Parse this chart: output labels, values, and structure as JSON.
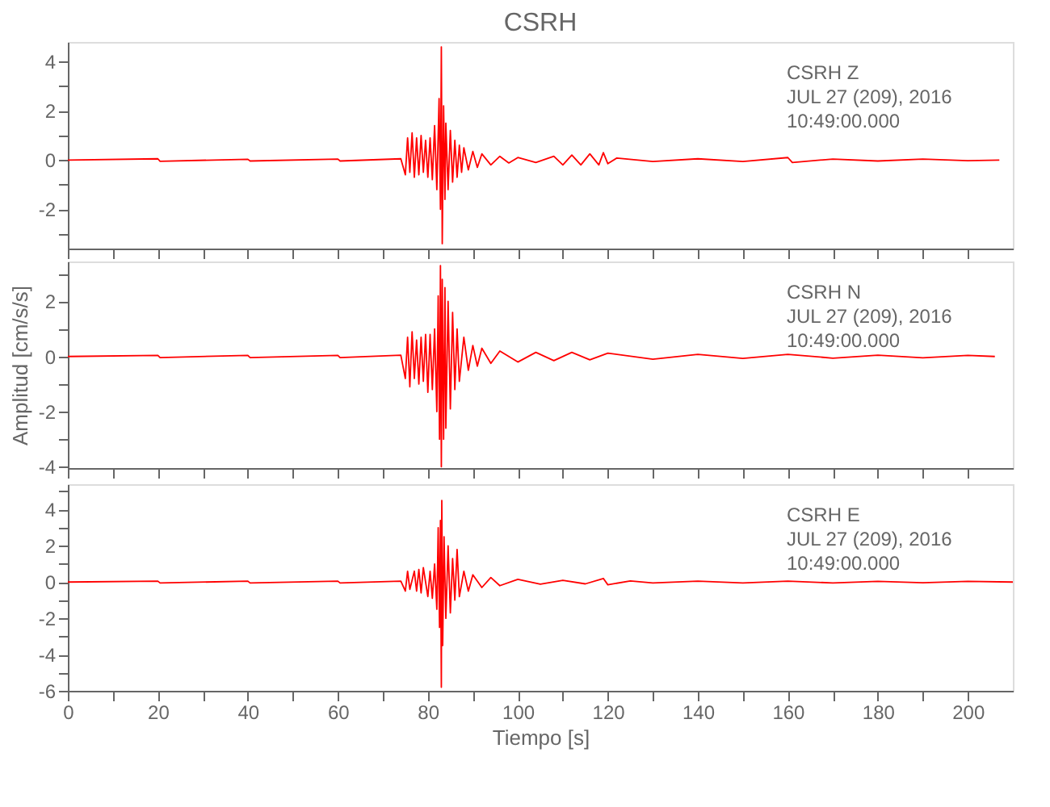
{
  "chart_data": [
    {
      "type": "line",
      "title": "CSRH",
      "annotations": [
        "CSRH   Z",
        "JUL 27 (209), 2016",
        "10:49:00.000"
      ],
      "tick_labels": "y",
      "grid": false,
      "line_style": "solid",
      "marker": "none",
      "xlim": [
        0,
        210
      ],
      "xticks": [
        0,
        {
          "value": 10,
          "label": null
        },
        20,
        {
          "value": 30,
          "label": null
        },
        40,
        {
          "value": 50,
          "label": null
        },
        60,
        {
          "value": 70,
          "label": null
        },
        80,
        {
          "value": 90,
          "label": null
        },
        100,
        {
          "value": 110,
          "label": null
        },
        120,
        {
          "value": 130,
          "label": null
        },
        140,
        {
          "value": 150,
          "label": null
        },
        160,
        {
          "value": 170,
          "label": null
        },
        180,
        {
          "value": 190,
          "label": null
        },
        200
      ],
      "ylim": [
        -3.6,
        4.8
      ],
      "yticks": [
        {
          "value": -3,
          "label": null
        },
        -2,
        {
          "value": -1,
          "label": null
        },
        0,
        {
          "value": 1,
          "label": null
        },
        2,
        {
          "value": 3,
          "label": null
        },
        4
      ],
      "series": [
        {
          "color": "#ff0000",
          "x": [
            0,
            20,
            20.5,
            40,
            40.5,
            60,
            60.5,
            74,
            75,
            75.5,
            76,
            76.5,
            77,
            77.5,
            78,
            78.5,
            79,
            79.5,
            80,
            80.5,
            81,
            81.5,
            82,
            82.5,
            82.8,
            83,
            83.2,
            83.5,
            83.8,
            84,
            84.5,
            85,
            85.5,
            86,
            86.5,
            87,
            87.5,
            88,
            89,
            90,
            91,
            92,
            94,
            96,
            98,
            100,
            104,
            108,
            110,
            112,
            114,
            116,
            118,
            119,
            120,
            122,
            130,
            140,
            150,
            160,
            161,
            170,
            180,
            190,
            200,
            207
          ],
          "values": [
            0,
            0.05,
            -0.05,
            0.03,
            -0.04,
            0.04,
            -0.04,
            0.05,
            -0.6,
            0.9,
            -0.5,
            1.1,
            -0.7,
            0.9,
            -0.6,
            1.0,
            -0.5,
            0.8,
            -0.7,
            0.9,
            -0.8,
            1.4,
            -1.2,
            2.5,
            -2.0,
            4.6,
            -3.4,
            2.2,
            -1.6,
            1.5,
            -1.2,
            1.2,
            -0.9,
            0.8,
            -0.7,
            0.6,
            -0.5,
            0.5,
            -0.4,
            0.35,
            -0.3,
            0.25,
            -0.2,
            0.15,
            -0.12,
            0.1,
            -0.1,
            0.15,
            -0.2,
            0.2,
            -0.2,
            0.25,
            -0.2,
            0.3,
            -0.15,
            0.08,
            -0.06,
            0.05,
            -0.06,
            0.1,
            -0.1,
            0.04,
            -0.04,
            0.04,
            -0.03,
            0
          ]
        }
      ]
    },
    {
      "type": "line",
      "ylabel": "Amplitud [cm/s/s]",
      "annotations": [
        "CSRH   N",
        "JUL 27 (209), 2016",
        "10:49:00.000"
      ],
      "tick_labels": "y",
      "grid": false,
      "line_style": "solid",
      "marker": "none",
      "xlim": [
        0,
        210
      ],
      "xticks": [
        0,
        {
          "value": 10,
          "label": null
        },
        20,
        {
          "value": 30,
          "label": null
        },
        40,
        {
          "value": 50,
          "label": null
        },
        60,
        {
          "value": 70,
          "label": null
        },
        80,
        {
          "value": 90,
          "label": null
        },
        100,
        {
          "value": 110,
          "label": null
        },
        120,
        {
          "value": 130,
          "label": null
        },
        140,
        {
          "value": 150,
          "label": null
        },
        160,
        {
          "value": 170,
          "label": null
        },
        180,
        {
          "value": 190,
          "label": null
        },
        200
      ],
      "ylim": [
        -4.05,
        3.45
      ],
      "yticks": [
        -4,
        {
          "value": -3,
          "label": null
        },
        -2,
        {
          "value": -1,
          "label": null
        },
        0,
        {
          "value": 1,
          "label": null
        },
        2,
        {
          "value": 3,
          "label": null
        }
      ],
      "series": [
        {
          "color": "#ff0000",
          "x": [
            0,
            20,
            20.5,
            40,
            40.5,
            60,
            60.5,
            74,
            75,
            75.5,
            76,
            76.5,
            77,
            77.5,
            78,
            78.5,
            79,
            79.5,
            80,
            80.5,
            81,
            81.5,
            82,
            82.3,
            82.6,
            82.8,
            83,
            83.2,
            83.5,
            83.8,
            84,
            84.5,
            85,
            85.5,
            86,
            86.5,
            87,
            88,
            89,
            90,
            91,
            92,
            94,
            96,
            100,
            104,
            108,
            112,
            116,
            120,
            130,
            140,
            150,
            160,
            170,
            180,
            190,
            200,
            206
          ],
          "values": [
            0,
            0.04,
            -0.04,
            0.04,
            -0.04,
            0.04,
            -0.04,
            0.05,
            -0.8,
            0.7,
            -1.1,
            0.9,
            -0.8,
            0.6,
            -1.0,
            0.7,
            -0.9,
            0.8,
            -1.3,
            0.8,
            -1.2,
            1.0,
            -2.0,
            2.2,
            -3.0,
            3.3,
            -4.0,
            2.8,
            -3.0,
            2.5,
            -2.6,
            2.0,
            -1.9,
            1.6,
            -1.2,
            1.0,
            -0.9,
            0.7,
            -0.5,
            0.4,
            -0.35,
            0.3,
            -0.25,
            0.2,
            -0.2,
            0.15,
            -0.15,
            0.15,
            -0.12,
            0.12,
            -0.1,
            0.08,
            -0.07,
            0.08,
            -0.06,
            0.05,
            -0.05,
            0.04,
            0
          ]
        }
      ]
    },
    {
      "type": "line",
      "xlabel": "Tiempo [s]",
      "annotations": [
        "CSRH   E",
        "JUL 27 (209), 2016",
        "10:49:00.000"
      ],
      "grid": false,
      "line_style": "solid",
      "marker": "none",
      "xlim": [
        0,
        210
      ],
      "xticks": [
        0,
        {
          "value": 10,
          "label": null
        },
        20,
        {
          "value": 30,
          "label": null
        },
        40,
        {
          "value": 50,
          "label": null
        },
        60,
        {
          "value": 70,
          "label": null
        },
        80,
        {
          "value": 90,
          "label": null
        },
        100,
        {
          "value": 110,
          "label": null
        },
        120,
        {
          "value": 130,
          "label": null
        },
        140,
        {
          "value": 150,
          "label": null
        },
        160,
        {
          "value": 170,
          "label": null
        },
        180,
        {
          "value": 190,
          "label": null
        },
        200
      ],
      "ylim": [
        -6,
        5.4
      ],
      "yticks": [
        -6,
        {
          "value": -5,
          "label": null
        },
        -4,
        {
          "value": -3,
          "label": null
        },
        -2,
        {
          "value": -1,
          "label": null
        },
        0,
        {
          "value": 1,
          "label": null
        },
        2,
        {
          "value": 3,
          "label": null
        },
        4,
        {
          "value": 5,
          "label": null
        }
      ],
      "series": [
        {
          "color": "#ff0000",
          "x": [
            0,
            20,
            20.5,
            40,
            40.5,
            60,
            60.5,
            74,
            75,
            75.5,
            76,
            77,
            77.5,
            78,
            78.5,
            79,
            80,
            80.5,
            81,
            81.5,
            82,
            82.3,
            82.6,
            82.8,
            83,
            83.1,
            83.3,
            83.6,
            84,
            84.5,
            85,
            85.5,
            86,
            86.5,
            87,
            88,
            89,
            90,
            92,
            94,
            96,
            100,
            105,
            110,
            115,
            119,
            120,
            125,
            130,
            140,
            150,
            160,
            170,
            180,
            190,
            200,
            210
          ],
          "values": [
            0,
            0.05,
            -0.05,
            0.05,
            -0.05,
            0.05,
            -0.05,
            0.05,
            -0.5,
            0.6,
            -0.4,
            0.6,
            -0.5,
            0.7,
            -0.6,
            0.8,
            -0.8,
            0.6,
            -0.9,
            1.0,
            -1.5,
            3.0,
            -2.5,
            3.4,
            -5.8,
            4.5,
            -3.5,
            2.5,
            -2.0,
            2.0,
            -1.7,
            1.3,
            -1.0,
            1.8,
            -0.8,
            0.6,
            -0.5,
            0.4,
            -0.3,
            0.25,
            -0.2,
            0.15,
            -0.12,
            0.1,
            -0.1,
            0.2,
            -0.15,
            0.06,
            -0.05,
            0.05,
            -0.05,
            0.05,
            -0.05,
            0.04,
            -0.04,
            0.04,
            0
          ]
        }
      ]
    }
  ]
}
